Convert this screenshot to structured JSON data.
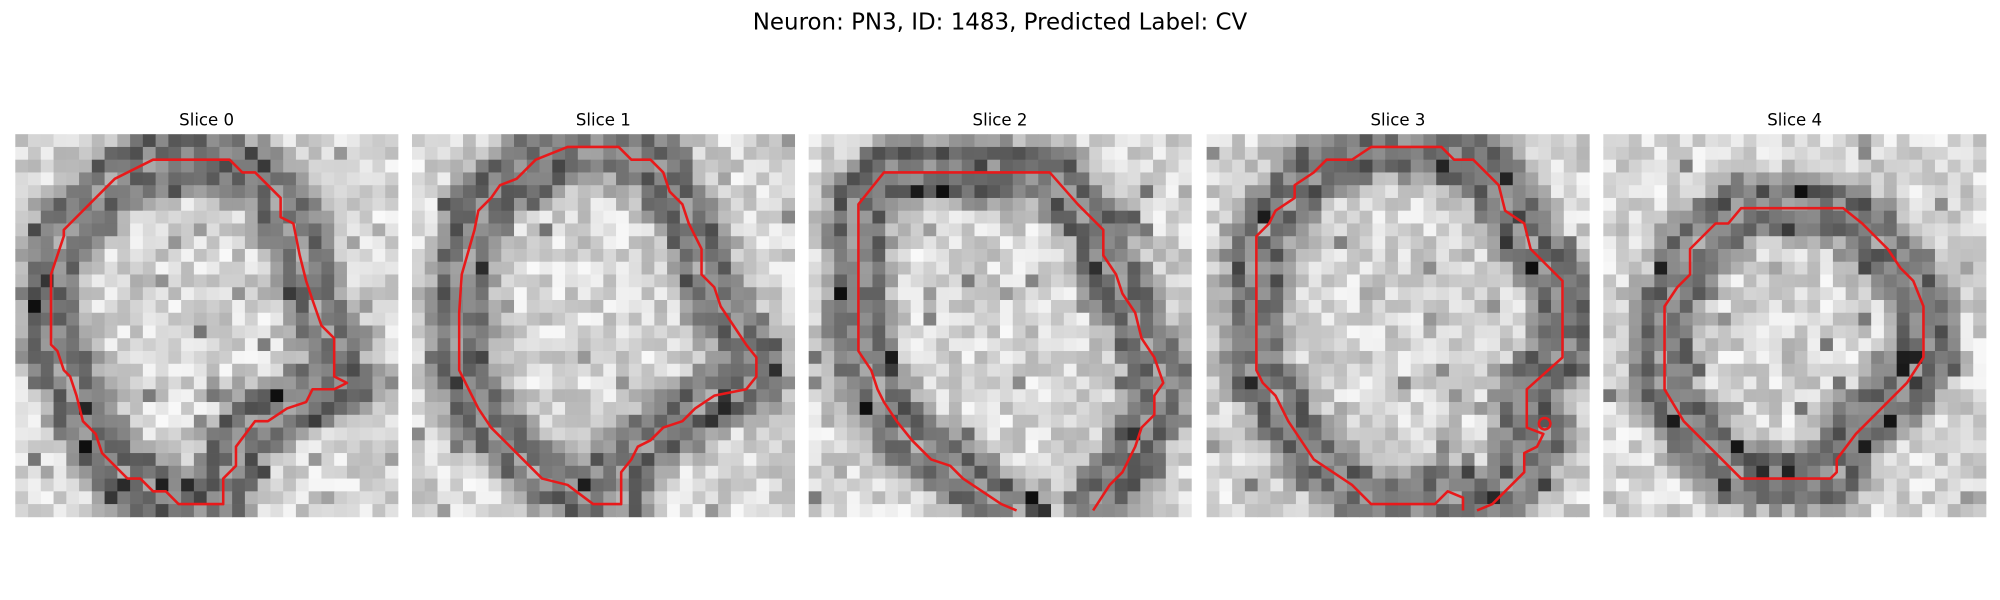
{
  "title": "Neuron: PN3, ID: 1483, Predicted Label: CV",
  "panels": [
    {
      "title": "Slice 0"
    },
    {
      "title": "Slice 1"
    },
    {
      "title": "Slice 2"
    },
    {
      "title": "Slice 3"
    },
    {
      "title": "Slice 4"
    }
  ]
}
